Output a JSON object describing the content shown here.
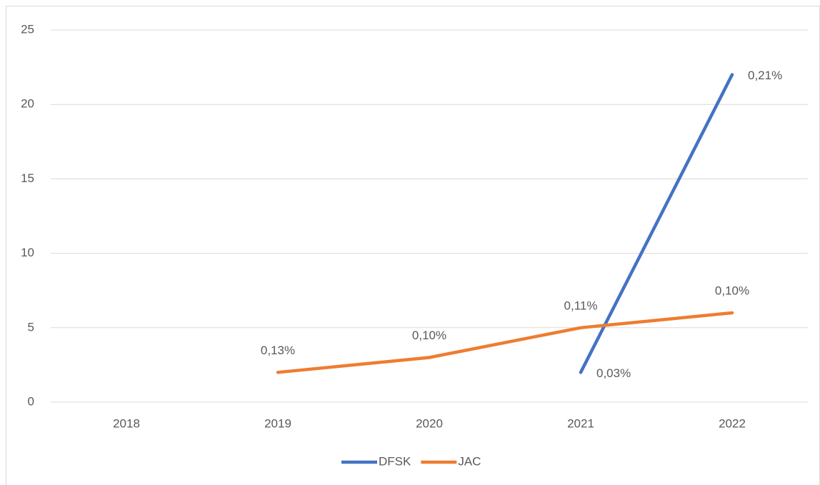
{
  "chart_data": {
    "type": "line",
    "categories": [
      "2018",
      "2019",
      "2020",
      "2021",
      "2022"
    ],
    "series": [
      {
        "name": "DFSK",
        "color": "#4472c4",
        "values": [
          null,
          null,
          null,
          2,
          22
        ],
        "point_labels": [
          null,
          null,
          null,
          "0,03%",
          "0,21%"
        ],
        "label_position": "right"
      },
      {
        "name": "JAC",
        "color": "#ed7d31",
        "values": [
          null,
          2,
          3,
          5,
          6
        ],
        "point_labels": [
          null,
          "0,13%",
          "0,10%",
          "0,11%",
          "0,10%"
        ],
        "label_position": "above"
      }
    ],
    "ylim": [
      0,
      25
    ],
    "yticks": [
      0,
      5,
      10,
      15,
      20,
      25
    ],
    "grid": true,
    "legend": "bottom"
  }
}
